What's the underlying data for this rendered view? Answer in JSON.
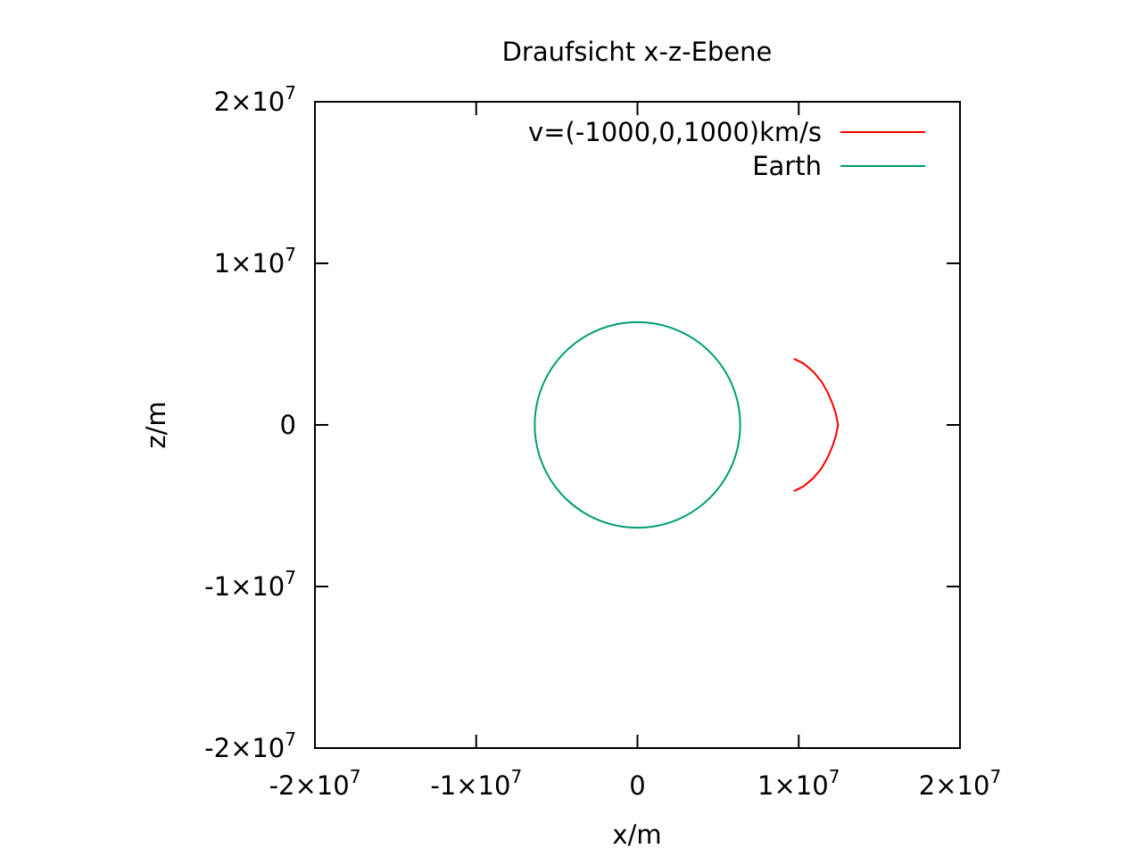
{
  "chart_data": {
    "type": "line",
    "title": "Draufsicht x-z-Ebene",
    "xlabel": "x/m",
    "ylabel": "z/m",
    "xlim": [
      -20000000,
      20000000
    ],
    "ylim": [
      -20000000,
      20000000
    ],
    "x_ticks": [
      {
        "value": -20000000,
        "mantissa": "-2",
        "times": "×10",
        "exp": "7",
        "zero": ""
      },
      {
        "value": -10000000,
        "mantissa": "-1",
        "times": "×10",
        "exp": "7",
        "zero": ""
      },
      {
        "value": 0,
        "mantissa": "",
        "times": "",
        "exp": "",
        "zero": "0"
      },
      {
        "value": 10000000,
        "mantissa": "1",
        "times": "×10",
        "exp": "7",
        "zero": ""
      },
      {
        "value": 20000000,
        "mantissa": "2",
        "times": "×10",
        "exp": "7",
        "zero": ""
      }
    ],
    "y_ticks": [
      {
        "value": 20000000,
        "mantissa": "2",
        "times": "×10",
        "exp": "7",
        "zero": ""
      },
      {
        "value": 10000000,
        "mantissa": "1",
        "times": "×10",
        "exp": "7",
        "zero": ""
      },
      {
        "value": 0,
        "mantissa": "",
        "times": "",
        "exp": "",
        "zero": "0"
      },
      {
        "value": -10000000,
        "mantissa": "-1",
        "times": "×10",
        "exp": "7",
        "zero": ""
      },
      {
        "value": -20000000,
        "mantissa": "-2",
        "times": "×10",
        "exp": "7",
        "zero": ""
      }
    ],
    "grid": false,
    "legend_position": "top-right",
    "series": [
      {
        "name": "v=(-1000,0,1000)km/s",
        "color": "#ff0000",
        "x": [
          9700000,
          10300000,
          10900000,
          11400000,
          11800000,
          12100000,
          12300000,
          12400000,
          12450000,
          12400000,
          12300000,
          12100000,
          11800000,
          11400000,
          10900000,
          10300000,
          9700000
        ],
        "y": [
          4100000,
          3800000,
          3300000,
          2700000,
          2000000,
          1300000,
          700000,
          200000,
          0,
          -200000,
          -700000,
          -1300000,
          -2000000,
          -2700000,
          -3300000,
          -3800000,
          -4100000
        ]
      },
      {
        "name": "Earth",
        "color": "#009e73",
        "shape": "circle",
        "center": [
          0,
          0
        ],
        "radius": 6371000
      }
    ]
  }
}
